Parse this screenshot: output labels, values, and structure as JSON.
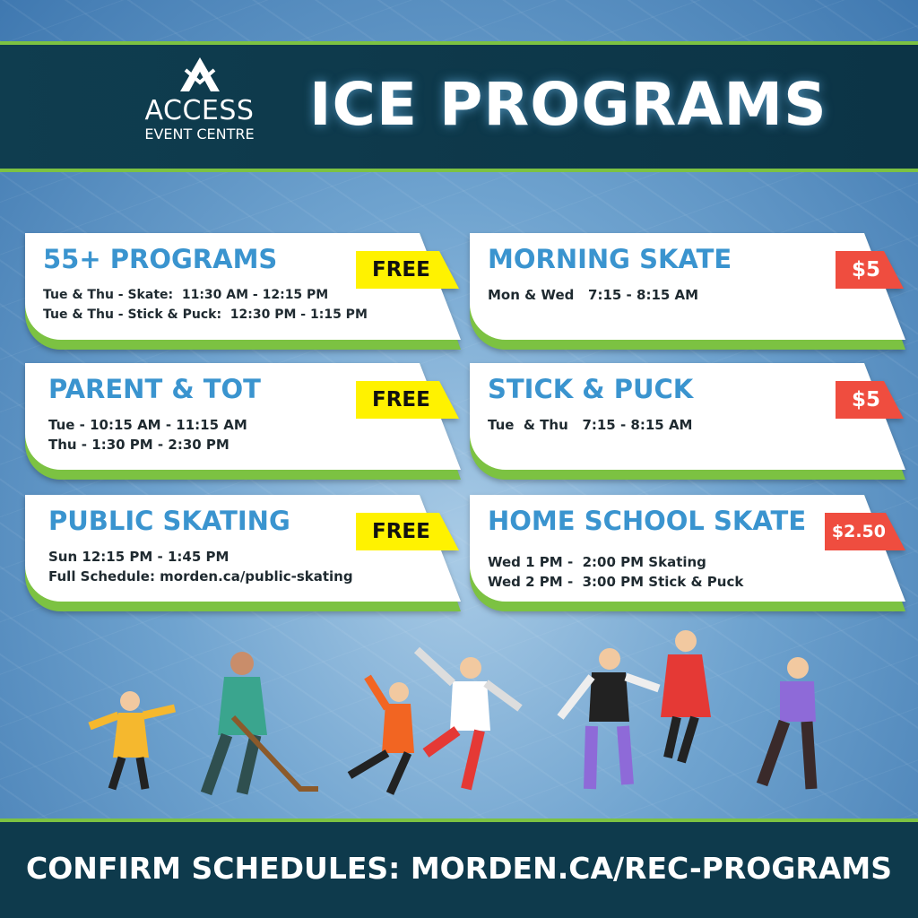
{
  "logo": {
    "line1": "ACCESS",
    "line2": "EVENT CENTRE"
  },
  "title": "ICE PROGRAMS",
  "programs": [
    {
      "name": "55+ PROGRAMS",
      "price": "FREE",
      "lines": [
        "Tue & Thu - Skate:  11:30 AM - 12:15 PM",
        "Tue & Thu - Stick & Puck:  12:30 PM - 1:15 PM"
      ]
    },
    {
      "name": "MORNING SKATE",
      "price": "$5",
      "lines": [
        "Mon & Wed   7:15 - 8:15 AM"
      ]
    },
    {
      "name": "PARENT & TOT",
      "price": "FREE",
      "lines": [
        "Tue - 10:15 AM - 11:15 AM",
        "Thu - 1:30 PM - 2:30 PM"
      ]
    },
    {
      "name": "STICK & PUCK",
      "price": "$5",
      "lines": [
        "Tue  & Thu   7:15 - 8:15 AM"
      ]
    },
    {
      "name": "PUBLIC SKATING",
      "price": "FREE",
      "lines": [
        "Sun 12:15 PM - 1:45 PM",
        "Full Schedule: morden.ca/public-skating"
      ]
    },
    {
      "name": "HOME SCHOOL SKATE",
      "price": "$2.50",
      "lines": [
        "Wed 1 PM -  2:00 PM Skating",
        "Wed 2 PM -  3:00 PM Stick & Puck"
      ]
    }
  ],
  "footer": "CONFIRM SCHEDULES: MORDEN.CA/REC-PROGRAMS",
  "colors": {
    "header": "#0f3d4f",
    "accent_green": "#7cc242",
    "title_blue": "#3a94cf",
    "free_tag": "#fff200",
    "price_tag": "#ef4d3f"
  }
}
